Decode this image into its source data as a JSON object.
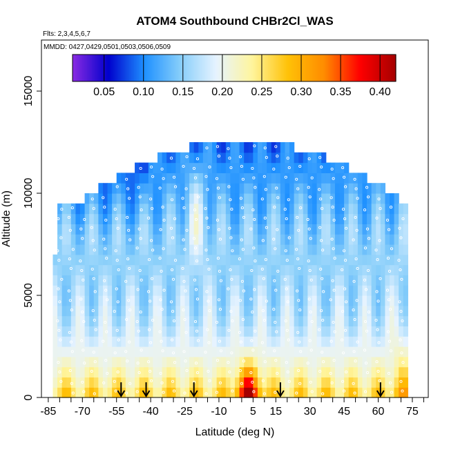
{
  "chart_data": {
    "type": "heatmap",
    "title": "ATOM4 Southbound CHBr2Cl_WAS",
    "notes": {
      "flights": "Flts: 2,3,4,5,6,7",
      "dates": "MMDD: 0427,0429,0501,0503,0506,0509"
    },
    "xlabel": "Latitude (deg N)",
    "ylabel": "Altitude (m)",
    "xlim": [
      -88,
      82
    ],
    "ylim": [
      0,
      17500
    ],
    "x_ticks": [
      -85,
      -70,
      -55,
      -40,
      -25,
      -10,
      5,
      15,
      30,
      45,
      60,
      75
    ],
    "x_minor_step": 5,
    "y_ticks": [
      0,
      5000,
      10000,
      15000
    ],
    "colorbar": {
      "ticks": [
        0.05,
        0.1,
        0.15,
        0.2,
        0.25,
        0.3,
        0.35,
        0.4
      ],
      "tick_labels": [
        "0.05",
        "0.10",
        "0.15",
        "0.20",
        "0.25",
        "0.30",
        "0.35",
        "0.40"
      ],
      "range": [
        0.01,
        0.42
      ],
      "placement": "top-inside",
      "colors": [
        "#8a2be2",
        "#0000cd",
        "#1e90ff",
        "#87cefa",
        "#e6f3ff",
        "#fff59d",
        "#ffc107",
        "#ff8c00",
        "#ff0000",
        "#a50000"
      ]
    },
    "latitude_bins": [
      -80,
      -75,
      -70,
      -65,
      -60,
      -55,
      -50,
      -45,
      -40,
      -35,
      -30,
      -25,
      -20,
      -15,
      -10,
      -5,
      0,
      5,
      10,
      15,
      20,
      25,
      30,
      35,
      40,
      45,
      50,
      55,
      60,
      65,
      70
    ],
    "altitude_bins": [
      250,
      750,
      1250,
      1750,
      2250,
      2750,
      3250,
      3750,
      4250,
      4750,
      5250,
      5750,
      6250,
      6750,
      7250,
      7750,
      8250,
      8750,
      9250,
      9750,
      10250,
      10750,
      11250,
      11750,
      12250
    ],
    "profile_latitudes": [
      -53,
      -42,
      -21,
      17,
      61
    ],
    "marker": "arrow-down",
    "sample_points_shown": true
  }
}
